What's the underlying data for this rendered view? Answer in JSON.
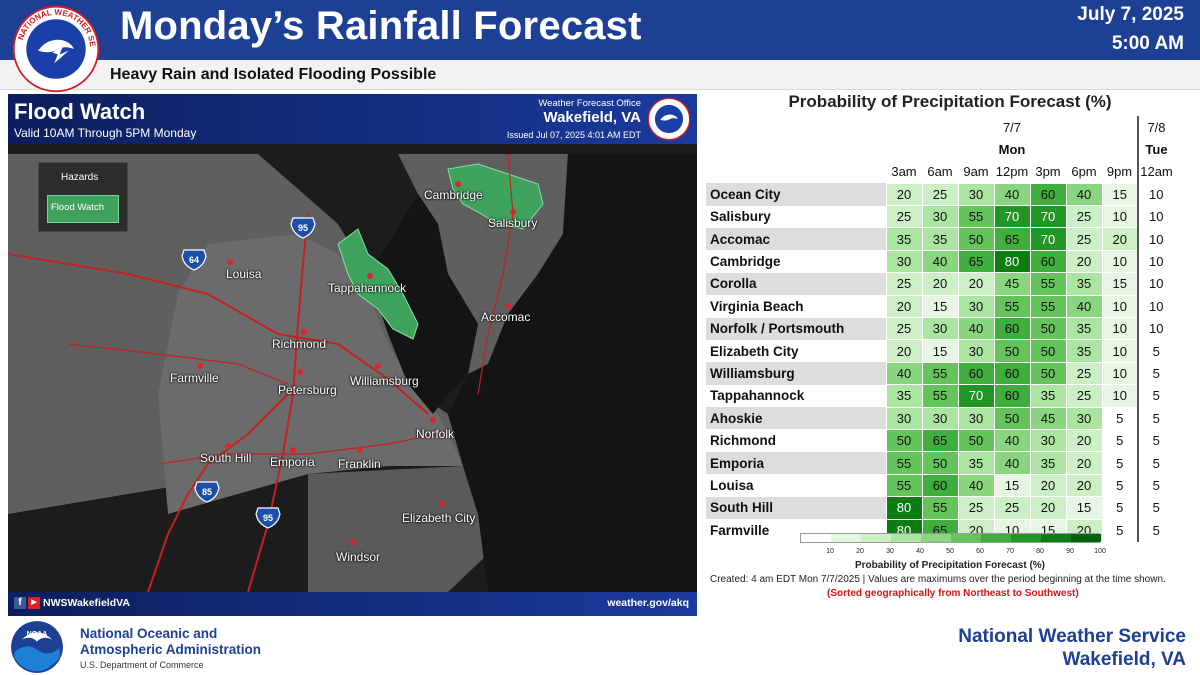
{
  "header": {
    "title": "Monday’s Rainfall Forecast",
    "date": "July 7, 2025",
    "time": "5:00 AM",
    "subtitle": "Heavy Rain and Isolated Flooding Possible",
    "logo_text": "NATIONAL WEATHER SERVICE"
  },
  "map": {
    "title": "Flood Watch",
    "valid": "Valid 10AM Through 5PM Monday",
    "wfo_label": "Weather Forecast Office",
    "office": "Wakefield, VA",
    "issued": "Issued Jul 07, 2025 4:01 AM EDT",
    "legend_title": "Hazards",
    "legend_item": "Flood Watch",
    "legend_color": "#3fa25c",
    "cities": [
      "Cambridge",
      "Salisbury",
      "Louisa",
      "Tappahannock",
      "Accomac",
      "Richmond",
      "Farmville",
      "Petersburg",
      "Williamsburg",
      "Norfolk",
      "South Hill",
      "Emporia",
      "Franklin",
      "Elizabeth City",
      "Windsor"
    ],
    "interstates": [
      "64",
      "95",
      "85",
      "95"
    ],
    "social": "NWSWakefieldVA",
    "url": "weather.gov/akq"
  },
  "pop": {
    "title": "Probability of Precipitation Forecast (%)",
    "date1": "7/7",
    "day1": "Mon",
    "date2": "7/8",
    "day2": "Tue",
    "times": [
      "3am",
      "6am",
      "9am",
      "12pm",
      "3pm",
      "6pm",
      "9pm",
      "12am"
    ],
    "rows": [
      {
        "name": "Ocean City",
        "values": [
          20,
          25,
          30,
          40,
          60,
          40,
          15,
          10
        ]
      },
      {
        "name": "Salisbury",
        "values": [
          25,
          30,
          55,
          70,
          70,
          25,
          10,
          10
        ]
      },
      {
        "name": "Accomac",
        "values": [
          35,
          35,
          50,
          65,
          70,
          25,
          20,
          10
        ]
      },
      {
        "name": "Cambridge",
        "values": [
          30,
          40,
          65,
          80,
          60,
          20,
          10,
          10
        ]
      },
      {
        "name": "Corolla",
        "values": [
          25,
          20,
          20,
          45,
          55,
          35,
          15,
          10
        ]
      },
      {
        "name": "Virginia Beach",
        "values": [
          20,
          15,
          30,
          55,
          55,
          40,
          10,
          10
        ]
      },
      {
        "name": "Norfolk / Portsmouth",
        "values": [
          25,
          30,
          40,
          60,
          50,
          35,
          10,
          10
        ]
      },
      {
        "name": "Elizabeth City",
        "values": [
          20,
          15,
          30,
          50,
          50,
          35,
          10,
          5
        ]
      },
      {
        "name": "Williamsburg",
        "values": [
          40,
          55,
          60,
          60,
          50,
          25,
          10,
          5
        ]
      },
      {
        "name": "Tappahannock",
        "values": [
          35,
          55,
          70,
          60,
          35,
          25,
          10,
          5
        ]
      },
      {
        "name": "Ahoskie",
        "values": [
          30,
          30,
          30,
          50,
          45,
          30,
          5,
          5
        ]
      },
      {
        "name": "Richmond",
        "values": [
          50,
          65,
          50,
          40,
          30,
          20,
          5,
          5
        ]
      },
      {
        "name": "Emporia",
        "values": [
          55,
          50,
          35,
          40,
          35,
          20,
          5,
          5
        ]
      },
      {
        "name": "Louisa",
        "values": [
          55,
          60,
          40,
          15,
          20,
          20,
          5,
          5
        ]
      },
      {
        "name": "South Hill",
        "values": [
          80,
          55,
          25,
          25,
          20,
          15,
          5,
          5
        ]
      },
      {
        "name": "Farmville",
        "values": [
          80,
          65,
          20,
          10,
          15,
          20,
          5,
          5
        ]
      }
    ],
    "scale_ticks": [
      "10",
      "20",
      "30",
      "40",
      "50",
      "60",
      "70",
      "80",
      "90",
      "100"
    ],
    "scale_colors": [
      "#ffffff",
      "#e6f6e2",
      "#ccefc5",
      "#ace4a2",
      "#8ad57f",
      "#65c35b",
      "#3fae3e",
      "#219626",
      "#0c7d13",
      "#00630a"
    ],
    "scale_title": "Probability of Precipitation Forecast (%)",
    "created": "Created: 4 am EDT Mon 7/7/2025  |  Values are maximums over the period beginning at the time shown.",
    "sorted": "(Sorted geographically from Northeast to Southwest)"
  },
  "footer": {
    "noaa_line1": "National Oceanic and",
    "noaa_line2": "Atmospheric Administration",
    "noaa_line3": "U.S. Department of Commerce",
    "noaa_logo_text": "NOAA",
    "nws_line1": "National Weather Service",
    "nws_line2": "Wakefield, VA"
  }
}
